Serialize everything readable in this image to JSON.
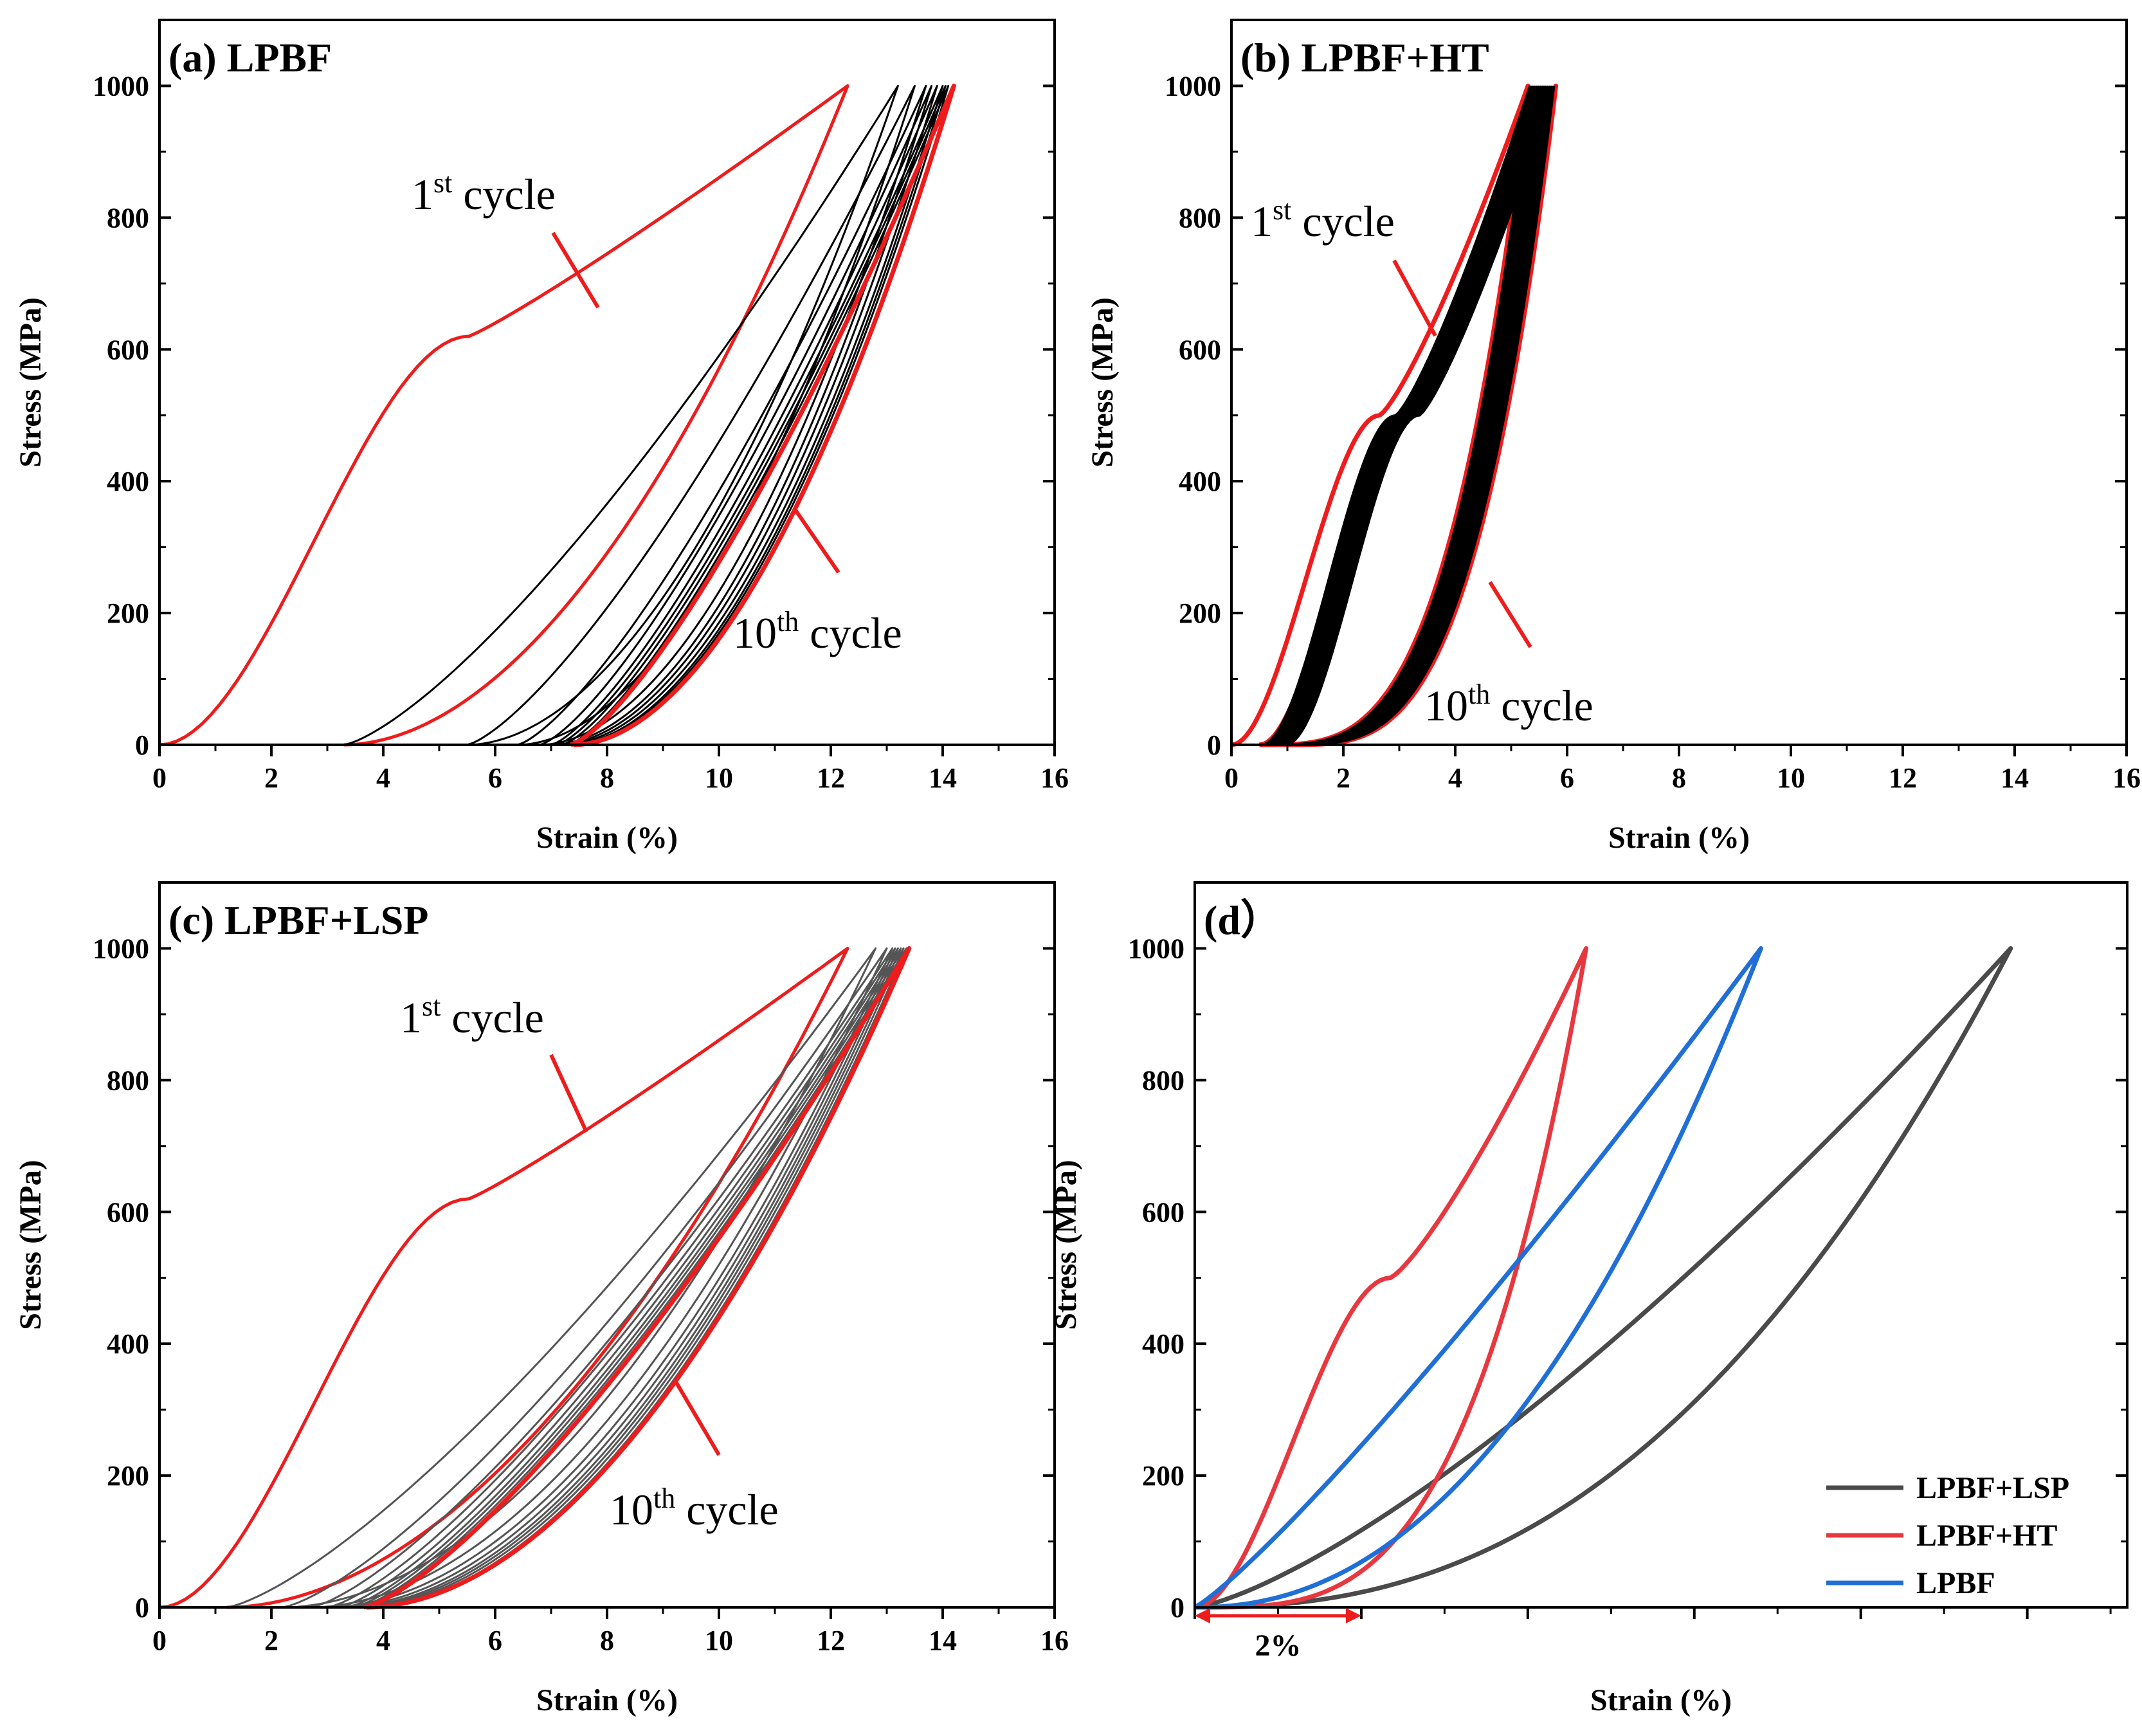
{
  "colors": {
    "first_cycle": "#ee1c1c",
    "cycles": "#000000",
    "cycles_lsp": "#555555",
    "lsp": "#4a4a4a",
    "ht": "#e8383f",
    "lpbf": "#1f6fd6",
    "axis": "#000000"
  },
  "chart_data": [
    {
      "type": "line",
      "title": "(a) LPBF",
      "xlabel": "Strain (%)",
      "ylabel": "Stress (MPa)",
      "xlim": [
        0,
        16
      ],
      "ylim": [
        0,
        1100
      ],
      "xticks": [
        "0",
        "2",
        "4",
        "6",
        "8",
        "10",
        "12",
        "14",
        "16"
      ],
      "yticks": [
        "0",
        "200",
        "400",
        "600",
        "800",
        "1000"
      ],
      "grid": false,
      "annotations": [
        {
          "base": "1",
          "sup": "st",
          "text": " cycle"
        },
        {
          "base": "10",
          "sup": "th",
          "text": " cycle"
        }
      ],
      "series": [
        {
          "cycle": 1,
          "peak_strain": 12.3,
          "residual_strain": 3.3,
          "max_stress": 1000
        },
        {
          "cycle": 2,
          "peak_strain": 13.2,
          "residual_strain": 5.5,
          "max_stress": 1000
        },
        {
          "cycle": 3,
          "peak_strain": 13.5,
          "residual_strain": 6.4,
          "max_stress": 1000
        },
        {
          "cycle": 4,
          "peak_strain": 13.7,
          "residual_strain": 6.8,
          "max_stress": 1000
        },
        {
          "cycle": 5,
          "peak_strain": 13.8,
          "residual_strain": 7.0,
          "max_stress": 1000
        },
        {
          "cycle": 6,
          "peak_strain": 13.9,
          "residual_strain": 7.1,
          "max_stress": 1000
        },
        {
          "cycle": 7,
          "peak_strain": 14.0,
          "residual_strain": 7.2,
          "max_stress": 1000
        },
        {
          "cycle": 8,
          "peak_strain": 14.05,
          "residual_strain": 7.3,
          "max_stress": 1000
        },
        {
          "cycle": 9,
          "peak_strain": 14.1,
          "residual_strain": 7.35,
          "max_stress": 1000
        },
        {
          "cycle": 10,
          "peak_strain": 14.2,
          "residual_strain": 7.4,
          "max_stress": 1000
        }
      ]
    },
    {
      "type": "line",
      "title": "(b) LPBF+HT",
      "xlabel": "Strain (%)",
      "ylabel": "Stress (MPa)",
      "xlim": [
        0,
        16
      ],
      "ylim": [
        0,
        1100
      ],
      "xticks": [
        "0",
        "2",
        "4",
        "6",
        "8",
        "10",
        "12",
        "14",
        "16"
      ],
      "yticks": [
        "0",
        "200",
        "400",
        "600",
        "800",
        "1000"
      ],
      "grid": false,
      "annotations": [
        {
          "base": "1",
          "sup": "st",
          "text": " cycle"
        },
        {
          "base": "10",
          "sup": "th",
          "text": " cycle"
        }
      ],
      "series": [
        {
          "cycle": 1,
          "peak_strain": 5.3,
          "residual_strain": 0.5,
          "max_stress": 1000
        },
        {
          "cycle": 10,
          "peak_strain": 5.8,
          "residual_strain": 1.0,
          "max_stress": 1000
        }
      ]
    },
    {
      "type": "line",
      "title": "(c) LPBF+LSP",
      "xlabel": "Strain (%)",
      "ylabel": "Stress (MPa)",
      "xlim": [
        0,
        16
      ],
      "ylim": [
        0,
        1100
      ],
      "xticks": [
        "0",
        "2",
        "4",
        "6",
        "8",
        "10",
        "12",
        "14",
        "16"
      ],
      "yticks": [
        "0",
        "200",
        "400",
        "600",
        "800",
        "1000"
      ],
      "grid": false,
      "annotations": [
        {
          "base": "1",
          "sup": "st",
          "text": " cycle"
        },
        {
          "base": "10",
          "sup": "th",
          "text": " cycle"
        }
      ],
      "series": [
        {
          "cycle": 1,
          "peak_strain": 12.3,
          "residual_strain": 1.2,
          "max_stress": 1000
        },
        {
          "cycle": 2,
          "peak_strain": 12.8,
          "residual_strain": 2.2,
          "max_stress": 1000
        },
        {
          "cycle": 3,
          "peak_strain": 13.0,
          "residual_strain": 2.7,
          "max_stress": 1000
        },
        {
          "cycle": 4,
          "peak_strain": 13.1,
          "residual_strain": 3.0,
          "max_stress": 1000
        },
        {
          "cycle": 5,
          "peak_strain": 13.15,
          "residual_strain": 3.2,
          "max_stress": 1000
        },
        {
          "cycle": 6,
          "peak_strain": 13.2,
          "residual_strain": 3.35,
          "max_stress": 1000
        },
        {
          "cycle": 7,
          "peak_strain": 13.25,
          "residual_strain": 3.45,
          "max_stress": 1000
        },
        {
          "cycle": 8,
          "peak_strain": 13.3,
          "residual_strain": 3.55,
          "max_stress": 1000
        },
        {
          "cycle": 9,
          "peak_strain": 13.35,
          "residual_strain": 3.65,
          "max_stress": 1000
        },
        {
          "cycle": 10,
          "peak_strain": 13.4,
          "residual_strain": 3.7,
          "max_stress": 1000
        }
      ]
    },
    {
      "type": "line",
      "title": "(d）",
      "xlabel": "Strain (%)",
      "ylabel": "Stress (MPa)",
      "ylim": [
        0,
        1100
      ],
      "yticks": [
        "0",
        "200",
        "400",
        "600",
        "800",
        "1000"
      ],
      "scale_bar": "2%",
      "legend": {
        "position": "bottom-right"
      },
      "grid": false,
      "series": [
        {
          "name": "LPBF+LSP",
          "peak_strain": 9.8,
          "max_stress": 1000
        },
        {
          "name": "LPBF+HT",
          "peak_strain": 4.7,
          "max_stress": 1000
        },
        {
          "name": "LPBF",
          "peak_strain": 6.8,
          "max_stress": 1000
        }
      ]
    }
  ]
}
